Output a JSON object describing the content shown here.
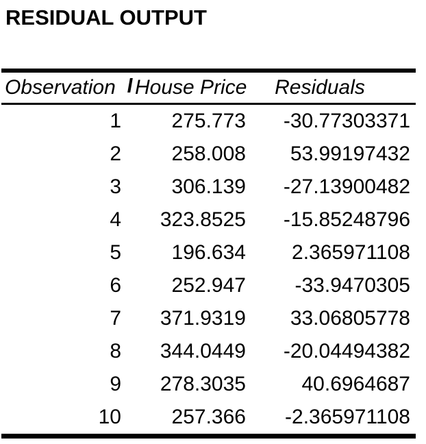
{
  "title": "RESIDUAL OUTPUT",
  "colors": {
    "text": "#000000",
    "border": "#000000",
    "background": "#ffffff"
  },
  "table": {
    "headers": {
      "observation": "Observation",
      "house_price": "House Price",
      "residuals": "Residuals"
    },
    "rows": [
      {
        "observation": "1",
        "house_price": "275.773",
        "residual": "-30.77303371"
      },
      {
        "observation": "2",
        "house_price": "258.008",
        "residual": "53.99197432"
      },
      {
        "observation": "3",
        "house_price": "306.139",
        "residual": "-27.13900482"
      },
      {
        "observation": "4",
        "house_price": "323.8525",
        "residual": "-15.85248796"
      },
      {
        "observation": "5",
        "house_price": "196.634",
        "residual": "2.365971108"
      },
      {
        "observation": "6",
        "house_price": "252.947",
        "residual": "-33.9470305"
      },
      {
        "observation": "7",
        "house_price": "371.9319",
        "residual": "33.06805778"
      },
      {
        "observation": "8",
        "house_price": "344.0449",
        "residual": "-20.04494382"
      },
      {
        "observation": "9",
        "house_price": "278.3035",
        "residual": "40.6964687"
      },
      {
        "observation": "10",
        "house_price": "257.366",
        "residual": "-2.365971108"
      }
    ]
  }
}
